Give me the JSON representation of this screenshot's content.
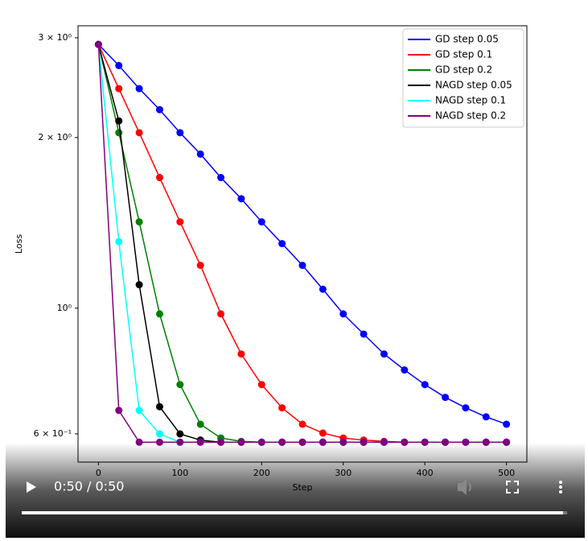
{
  "chart_data": {
    "type": "line",
    "log_y": true,
    "legend": "upper right",
    "x_label": "Step",
    "y_label": "Loss",
    "x": [
      0,
      25,
      50,
      75,
      100,
      125,
      150,
      175,
      200,
      225,
      250,
      275,
      300,
      325,
      350,
      375,
      400,
      425,
      450,
      475,
      500
    ],
    "xlim": [
      -25,
      525
    ],
    "xticks": [
      0,
      100,
      200,
      300,
      400,
      500
    ],
    "ylim": [
      0.535,
      3.15
    ],
    "yticks": [
      {
        "value": 0.6,
        "label": "6 × 10⁻¹"
      },
      {
        "value": 1,
        "label": "10⁰"
      },
      {
        "value": 2,
        "label": "2 × 10⁰"
      },
      {
        "value": 3,
        "label": "3 × 10⁰"
      }
    ],
    "series": [
      {
        "name": "GD step 0.05",
        "color": "#0000ff",
        "values": [
          2.92,
          2.68,
          2.44,
          2.24,
          2.04,
          1.87,
          1.7,
          1.56,
          1.42,
          1.3,
          1.19,
          1.08,
          0.977,
          0.9,
          0.83,
          0.778,
          0.733,
          0.696,
          0.667,
          0.643,
          0.624
        ]
      },
      {
        "name": "GD step 0.1",
        "color": "#ff0000",
        "values": [
          2.92,
          2.44,
          2.04,
          1.7,
          1.42,
          1.19,
          0.977,
          0.83,
          0.733,
          0.667,
          0.624,
          0.602,
          0.59,
          0.585,
          0.582,
          0.58,
          0.58,
          0.58,
          0.58,
          0.58,
          0.58
        ]
      },
      {
        "name": "GD step 0.2",
        "color": "#008000",
        "values": [
          2.92,
          2.04,
          1.42,
          0.977,
          0.733,
          0.624,
          0.59,
          0.582,
          0.58,
          0.58,
          0.58,
          0.58,
          0.58,
          0.58,
          0.58,
          0.58,
          0.58,
          0.58,
          0.58,
          0.58,
          0.58
        ]
      },
      {
        "name": "NAGD step 0.05",
        "color": "#000000",
        "values": [
          2.92,
          2.14,
          1.1,
          0.67,
          0.6,
          0.585,
          0.58,
          0.58,
          0.58,
          0.58,
          0.58,
          0.58,
          0.58,
          0.58,
          0.58,
          0.58,
          0.58,
          0.58,
          0.58,
          0.58,
          0.58
        ]
      },
      {
        "name": "NAGD step 0.1",
        "color": "#00ffff",
        "values": [
          2.92,
          1.31,
          0.66,
          0.6,
          0.58,
          0.58,
          0.58,
          0.58,
          0.58,
          0.58,
          0.58,
          0.58,
          0.58,
          0.58,
          0.58,
          0.58,
          0.58,
          0.58,
          0.58,
          0.58,
          0.58
        ]
      },
      {
        "name": "NAGD step 0.2",
        "color": "#800080",
        "values": [
          2.92,
          0.66,
          0.58,
          0.58,
          0.58,
          0.58,
          0.58,
          0.58,
          0.58,
          0.58,
          0.58,
          0.58,
          0.58,
          0.58,
          0.58,
          0.58,
          0.58,
          0.58,
          0.58,
          0.58,
          0.58
        ]
      }
    ]
  },
  "player": {
    "time": "0:50 / 0:50"
  }
}
